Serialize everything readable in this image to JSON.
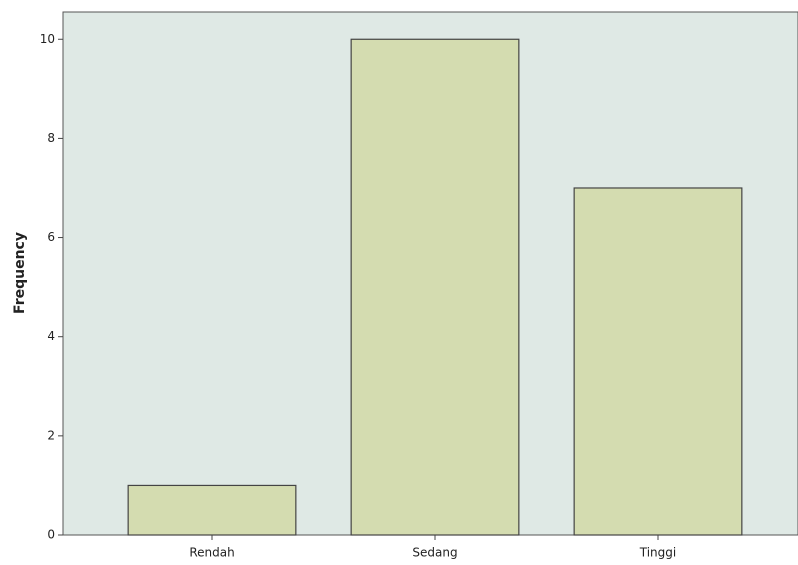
{
  "chart_data": {
    "type": "bar",
    "y_label": "Frequency",
    "categories": [
      "Rendah",
      "Sedang",
      "Tinggi"
    ],
    "values": [
      1,
      10,
      7
    ],
    "color": "#d4dcb0",
    "ylim": [
      0,
      10.55
    ],
    "yticks": [
      0,
      2,
      4,
      6,
      8,
      10
    ],
    "grid": false
  }
}
